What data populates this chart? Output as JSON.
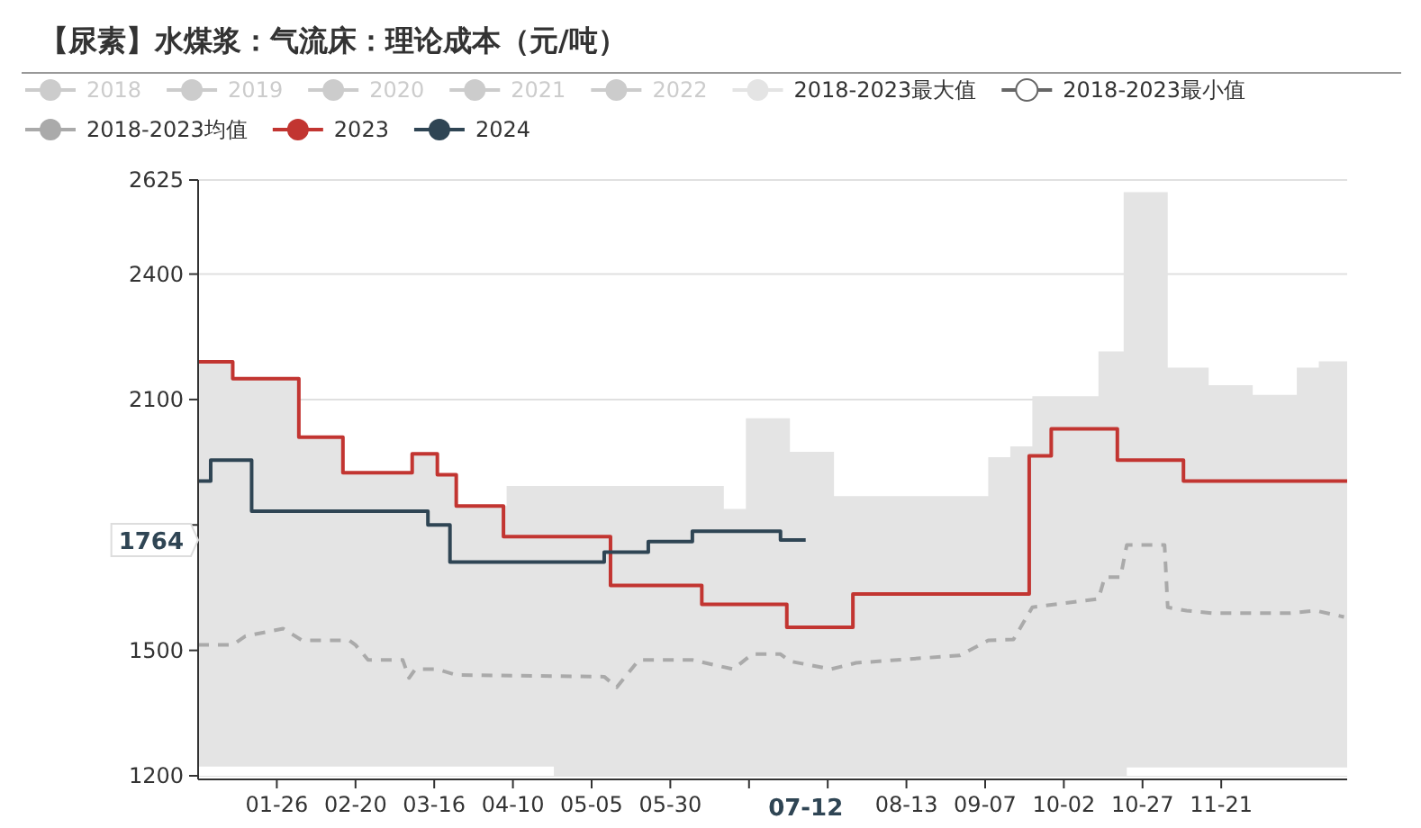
{
  "chart_data": {
    "type": "step",
    "title": "【尿素】水煤浆：气流床：理论成本（元/吨）",
    "xlim": [
      "--01-01",
      "--12-31"
    ],
    "xticks": [
      {
        "value": "--01-26",
        "label": "01-26"
      },
      {
        "value": "--02-20",
        "label": "02-20"
      },
      {
        "value": "--03-16",
        "label": "03-16"
      },
      {
        "value": "--04-10",
        "label": "04-10"
      },
      {
        "value": "--05-05",
        "label": "05-05"
      },
      {
        "value": "--05-30",
        "label": "05-30"
      },
      {
        "value": "--06-24",
        "label": null
      },
      {
        "value": "--07-19",
        "label": null
      },
      {
        "value": "--08-13",
        "label": "08-13"
      },
      {
        "value": "--09-07",
        "label": "09-07"
      },
      {
        "value": "--10-02",
        "label": "10-02"
      },
      {
        "value": "--10-27",
        "label": "10-27"
      },
      {
        "value": "--11-21",
        "label": "11-21"
      }
    ],
    "ylim": [
      1200,
      2625
    ],
    "yticks": [
      1200,
      1500,
      {
        "value": 1800,
        "label": null
      },
      2100,
      2400,
      2625
    ],
    "grid": "y",
    "legend": "top",
    "annotations": [
      "1764",
      "07-12"
    ],
    "series": [
      {
        "name": "2018",
        "color": "#cccccc"
      },
      {
        "name": "2019",
        "color": "#cccccc"
      },
      {
        "name": "2020",
        "color": "#cccccc"
      },
      {
        "name": "2021",
        "color": "#cccccc"
      },
      {
        "name": "2022",
        "color": "#cccccc"
      },
      {
        "name": "2018-2023最大值",
        "type": "area",
        "color": "#e4e4e4",
        "x": [
          "--01-01",
          "--01-12",
          "--02-02",
          "--02-16",
          "--03-09",
          "--03-17",
          "--03-23",
          "--04-08",
          "--06-16",
          "--06-23",
          "--07-07",
          "--07-21",
          "--09-08",
          "--09-15",
          "--09-22",
          "--10-13",
          "--10-21",
          "--11-04",
          "--11-17",
          "--12-01",
          "--12-15",
          "--12-22",
          "--12-31"
        ],
        "values": [
          2190,
          2150,
          2010,
          1925,
          1970,
          1920,
          1845,
          1893,
          1838,
          2055,
          1975,
          1869,
          1962,
          1988,
          2108,
          2215,
          2596,
          2176,
          2134,
          2111,
          2176,
          2191,
          2191
        ]
      },
      {
        "name": "2018-2023最小值",
        "type": "area",
        "color": "#ffffff",
        "x": [
          "--01-01",
          "--04-23",
          "--10-22",
          "--12-31"
        ],
        "values": [
          1222,
          null,
          1220,
          1220
        ]
      },
      {
        "name": "2018-2023均值",
        "type": "line",
        "line_style": "dashed",
        "color": "#aaaaaa",
        "x": [
          "--01-01",
          "--01-12",
          "--01-16",
          "--01-28",
          "--02-03",
          "--02-18",
          "--02-20",
          "--02-24",
          "--03-06",
          "--03-08",
          "--03-10",
          "--03-17",
          "--03-23",
          "--05-09",
          "--05-13",
          "--05-20",
          "--06-06",
          "--06-19",
          "--06-25",
          "--07-04",
          "--07-07",
          "--07-20",
          "--07-28",
          "--08-30",
          "--09-08",
          "--09-16",
          "--09-22",
          "--10-13",
          "--10-15",
          "--10-20",
          "--10-22",
          "--11-03",
          "--11-04",
          "--11-10",
          "--11-18",
          "--12-13",
          "--12-21",
          "--12-30"
        ],
        "values": [
          1513,
          1513,
          1534,
          1552,
          1524,
          1524,
          1513,
          1477,
          1477,
          1434,
          1455,
          1455,
          1441,
          1437,
          1412,
          1477,
          1477,
          1455,
          1491,
          1491,
          1474,
          1455,
          1470,
          1488,
          1524,
          1526,
          1603,
          1623,
          1675,
          1675,
          1752,
          1752,
          1603,
          1595,
          1589,
          1589,
          1595,
          1580
        ]
      },
      {
        "name": "2023",
        "color": "#c23531",
        "x": [
          "--01-01",
          "--01-12",
          "--02-02",
          "--02-16",
          "--03-09",
          "--03-17",
          "--03-23",
          "--04-07",
          "--05-11",
          "--06-09",
          "--07-06",
          "--07-27",
          "--09-21",
          "--09-28",
          "--10-19",
          "--11-09",
          "--12-31"
        ],
        "values": [
          2190,
          2150,
          2010,
          1925,
          1970,
          1920,
          1845,
          1772,
          1655,
          1610,
          1555,
          1635,
          1965,
          2030,
          1955,
          1905,
          1905
        ]
      },
      {
        "name": "2024",
        "color": "#2f4554",
        "x": [
          "--01-01",
          "--01-05",
          "--01-18",
          "--03-14",
          "--03-21",
          "--05-09",
          "--05-23",
          "--06-06",
          "--07-04",
          "--07-12"
        ],
        "values": [
          1905,
          1955,
          1833,
          1800,
          1711,
          1735,
          1760,
          1785,
          1764,
          1764
        ]
      }
    ]
  }
}
